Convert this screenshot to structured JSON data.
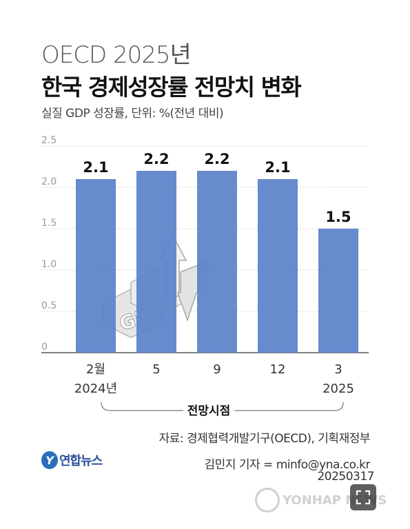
{
  "header": {
    "title_top": "OECD 2025년",
    "title_main": "한국 경제성장률 전망치 변화",
    "subtitle": "실질 GDP 성장률, 단위: %(전년 대비)"
  },
  "chart_data": {
    "type": "bar",
    "categories": [
      "2월",
      "5",
      "9",
      "12",
      "3"
    ],
    "category_sublabels": [
      "2024년",
      "",
      "",
      "",
      "2025"
    ],
    "values": [
      2.1,
      2.2,
      2.2,
      2.1,
      1.5
    ],
    "value_labels": [
      "2.1",
      "2.2",
      "2.2",
      "2.1",
      "1.5"
    ],
    "y_ticks": [
      "0",
      "0.5",
      "1.0",
      "1.5",
      "2.0",
      "2.5"
    ],
    "ylim": [
      0,
      2.5
    ],
    "bar_color": "#5b82c8",
    "grid": true,
    "bracket_label": "전망시점",
    "illustration_text": "GDP"
  },
  "footer": {
    "source": "자료: 경제협력개발기구(OECD), 기획재정부",
    "reporter": "김민지 기자 = minfo@yna.co.kr",
    "date": "20250317",
    "logo_text": "연합뉴스",
    "watermark": "YONHAP NEWS"
  },
  "ui": {
    "zoom_icon": "expand-icon"
  }
}
